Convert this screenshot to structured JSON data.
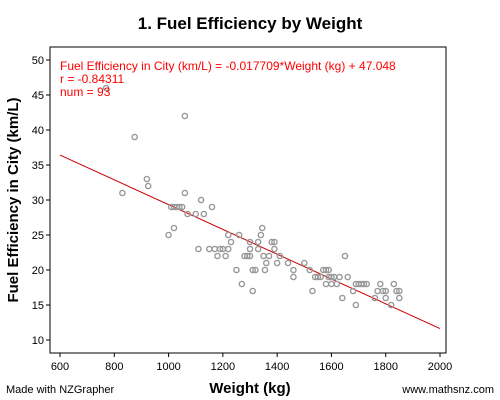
{
  "chart_data": {
    "type": "scatter",
    "title": "1. Fuel Efficiency by Weight",
    "xlabel": "Weight (kg)",
    "ylabel": "Fuel Efficiency in City (km/L)",
    "xlim": [
      600,
      2000
    ],
    "ylim": [
      10,
      50
    ],
    "xticks": [
      600,
      800,
      1000,
      1200,
      1400,
      1600,
      1800,
      2000
    ],
    "yticks": [
      10,
      15,
      20,
      25,
      30,
      35,
      40,
      45,
      50
    ],
    "grid": false,
    "regression": {
      "slope": -0.017709,
      "intercept": 47.048,
      "color": "#cc0000"
    },
    "annotations": [
      "Fuel Efficiency in City (km/L) = -0.017709*Weight (kg) + 47.048",
      "r = -0.84311",
      "num = 93"
    ],
    "point_color": "#999999",
    "points": [
      [
        770,
        46
      ],
      [
        875,
        39
      ],
      [
        830,
        31
      ],
      [
        920,
        33
      ],
      [
        925,
        32
      ],
      [
        1060,
        42
      ],
      [
        1000,
        25
      ],
      [
        1020,
        26
      ],
      [
        1010,
        29
      ],
      [
        1020,
        29
      ],
      [
        1030,
        29
      ],
      [
        1040,
        29
      ],
      [
        1050,
        29
      ],
      [
        1060,
        31
      ],
      [
        1070,
        28
      ],
      [
        1100,
        28
      ],
      [
        1110,
        23
      ],
      [
        1120,
        30
      ],
      [
        1130,
        28
      ],
      [
        1150,
        23
      ],
      [
        1160,
        29
      ],
      [
        1170,
        23
      ],
      [
        1180,
        22
      ],
      [
        1190,
        23
      ],
      [
        1200,
        23
      ],
      [
        1210,
        22
      ],
      [
        1220,
        25
      ],
      [
        1220,
        23
      ],
      [
        1230,
        24
      ],
      [
        1250,
        20
      ],
      [
        1260,
        25
      ],
      [
        1270,
        18
      ],
      [
        1280,
        22
      ],
      [
        1290,
        22
      ],
      [
        1300,
        22
      ],
      [
        1300,
        23
      ],
      [
        1300,
        24
      ],
      [
        1310,
        17
      ],
      [
        1310,
        20
      ],
      [
        1320,
        20
      ],
      [
        1330,
        23
      ],
      [
        1330,
        24
      ],
      [
        1340,
        25
      ],
      [
        1345,
        26
      ],
      [
        1350,
        22
      ],
      [
        1355,
        20
      ],
      [
        1360,
        21
      ],
      [
        1370,
        22
      ],
      [
        1380,
        24
      ],
      [
        1390,
        24
      ],
      [
        1390,
        23
      ],
      [
        1400,
        21
      ],
      [
        1410,
        22
      ],
      [
        1440,
        21
      ],
      [
        1460,
        19
      ],
      [
        1460,
        20
      ],
      [
        1500,
        21
      ],
      [
        1520,
        20
      ],
      [
        1530,
        17
      ],
      [
        1540,
        19
      ],
      [
        1550,
        19
      ],
      [
        1560,
        19
      ],
      [
        1570,
        20
      ],
      [
        1580,
        20
      ],
      [
        1580,
        18
      ],
      [
        1590,
        19
      ],
      [
        1590,
        20
      ],
      [
        1600,
        18
      ],
      [
        1600,
        19
      ],
      [
        1610,
        19
      ],
      [
        1620,
        18
      ],
      [
        1630,
        19
      ],
      [
        1640,
        16
      ],
      [
        1650,
        22
      ],
      [
        1660,
        19
      ],
      [
        1680,
        17
      ],
      [
        1690,
        18
      ],
      [
        1690,
        15
      ],
      [
        1700,
        18
      ],
      [
        1720,
        18
      ],
      [
        1730,
        18
      ],
      [
        1760,
        16
      ],
      [
        1770,
        17
      ],
      [
        1780,
        18
      ],
      [
        1790,
        17
      ],
      [
        1800,
        17
      ],
      [
        1800,
        16
      ],
      [
        1820,
        15
      ],
      [
        1830,
        18
      ],
      [
        1840,
        17
      ],
      [
        1850,
        17
      ],
      [
        1850,
        16
      ],
      [
        1710,
        18
      ]
    ]
  },
  "footer": {
    "left": "Made with NZGrapher",
    "right": "www.mathsnz.com"
  }
}
